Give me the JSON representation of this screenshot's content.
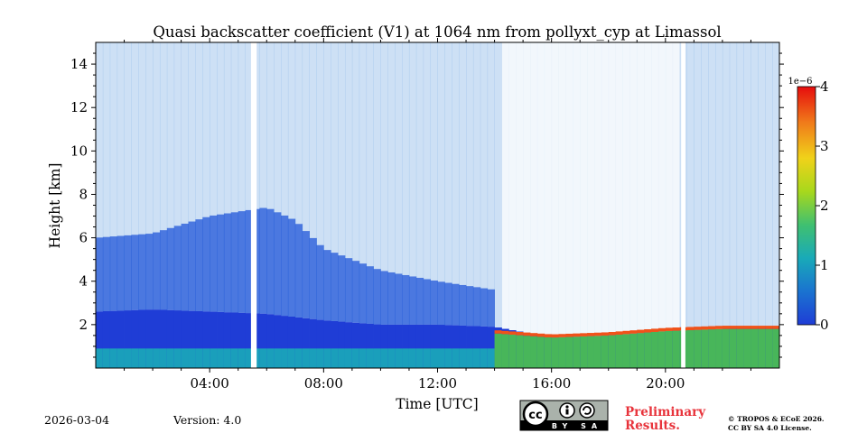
{
  "chart_data": {
    "type": "heatmap",
    "title": "Quasi backscatter coefficient (V1) at 1064 nm from pollyxt_cyp at Limassol",
    "xlabel": "Time [UTC]",
    "ylabel": "Height [km]",
    "xlim_hours": [
      0,
      24
    ],
    "ylim_km": [
      0,
      15
    ],
    "x_ticks": [
      {
        "hour": 4,
        "label": "04:00"
      },
      {
        "hour": 8,
        "label": "08:00"
      },
      {
        "hour": 12,
        "label": "12:00"
      },
      {
        "hour": 16,
        "label": "16:00"
      },
      {
        "hour": 20,
        "label": "20:00"
      }
    ],
    "y_ticks": [
      {
        "value": 2,
        "label": "2"
      },
      {
        "value": 4,
        "label": "4"
      },
      {
        "value": 6,
        "label": "6"
      },
      {
        "value": 8,
        "label": "8"
      },
      {
        "value": 10,
        "label": "10"
      },
      {
        "value": 12,
        "label": "12"
      },
      {
        "value": 14,
        "label": "14"
      }
    ],
    "colorbar": {
      "range": [
        0,
        4
      ],
      "exponent_label": "1e−6",
      "ticks": [
        {
          "value": 0,
          "label": "0"
        },
        {
          "value": 1,
          "label": "1"
        },
        {
          "value": 2,
          "label": "2"
        },
        {
          "value": 3,
          "label": "3"
        },
        {
          "value": 4,
          "label": "4"
        }
      ],
      "colors": [
        "#1f3dd6",
        "#1a73d0",
        "#19aab8",
        "#4cc34c",
        "#c8e01e",
        "#f2b21a",
        "#f0521a",
        "#e60d0d"
      ]
    },
    "boundary_layer": [
      {
        "hour": 0,
        "top_km": 2.6
      },
      {
        "hour": 2,
        "top_km": 2.7
      },
      {
        "hour": 4,
        "top_km": 2.6
      },
      {
        "hour": 6,
        "top_km": 2.5
      },
      {
        "hour": 8,
        "top_km": 2.2
      },
      {
        "hour": 10,
        "top_km": 2.0
      },
      {
        "hour": 12,
        "top_km": 2.0
      },
      {
        "hour": 14,
        "top_km": 1.9
      },
      {
        "hour": 16,
        "top_km": 1.4
      },
      {
        "hour": 18,
        "top_km": 1.5
      },
      {
        "hour": 20,
        "top_km": 1.7
      },
      {
        "hour": 22,
        "top_km": 1.8
      },
      {
        "hour": 24,
        "top_km": 1.9
      }
    ],
    "aerosol_layer": [
      {
        "hour": 0,
        "top_km": 6.0
      },
      {
        "hour": 2,
        "top_km": 6.2
      },
      {
        "hour": 4,
        "top_km": 7.0
      },
      {
        "hour": 6,
        "top_km": 7.4
      },
      {
        "hour": 7,
        "top_km": 6.8
      },
      {
        "hour": 8,
        "top_km": 5.5
      },
      {
        "hour": 10,
        "top_km": 4.5
      },
      {
        "hour": 12,
        "top_km": 4.0
      },
      {
        "hour": 14,
        "top_km": 3.6
      }
    ],
    "data_gaps_hours": [
      [
        5.45,
        5.65
      ],
      [
        20.55,
        20.7
      ]
    ],
    "cloud_base_km": [
      {
        "hour": 14,
        "base_km": 1.6
      },
      {
        "hour": 16,
        "base_km": 1.4
      },
      {
        "hour": 18,
        "base_km": 1.5
      },
      {
        "hour": 20,
        "base_km": 1.7
      },
      {
        "hour": 22,
        "base_km": 1.8
      }
    ]
  },
  "footer": {
    "date": "2026-03-04",
    "version": "Version: 4.0",
    "preliminary_line1": "Preliminary",
    "preliminary_line2": "Results.",
    "copyright_line1": "© TROPOS & ECoE 2026.",
    "copyright_line2": "CC BY SA 4.0 License.",
    "license_badge_text": "BY SA",
    "cc_text": "cc"
  }
}
